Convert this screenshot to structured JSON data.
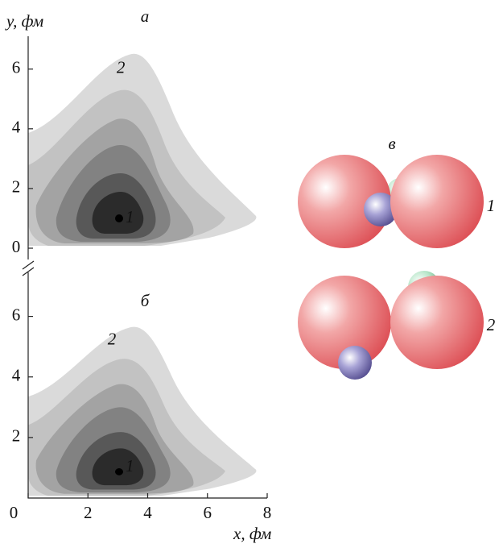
{
  "chart_data": [
    {
      "type": "contour",
      "title": "а",
      "ylabel": "y, фм",
      "xlim": [
        0,
        8
      ],
      "ylim": [
        0,
        7.1
      ],
      "yticks": [
        0,
        2,
        4,
        6
      ],
      "annotations": [
        {
          "text": "1",
          "x": 3.4,
          "y": 1.0
        },
        {
          "text": "2",
          "x": 3.1,
          "y": 6.0
        }
      ]
    },
    {
      "type": "contour",
      "title": "б",
      "xlabel": "x, фм",
      "xlim": [
        0,
        8
      ],
      "ylim": [
        0,
        7.4
      ],
      "xticks": [
        0,
        2,
        4,
        6,
        8
      ],
      "yticks": [
        2,
        4,
        6
      ],
      "annotations": [
        {
          "text": "1",
          "x": 3.4,
          "y": 1.0
        },
        {
          "text": "2",
          "x": 2.8,
          "y": 5.2
        }
      ]
    }
  ],
  "diagram": {
    "label": "в",
    "configs": [
      {
        "label": "1"
      },
      {
        "label": "2"
      }
    ]
  }
}
